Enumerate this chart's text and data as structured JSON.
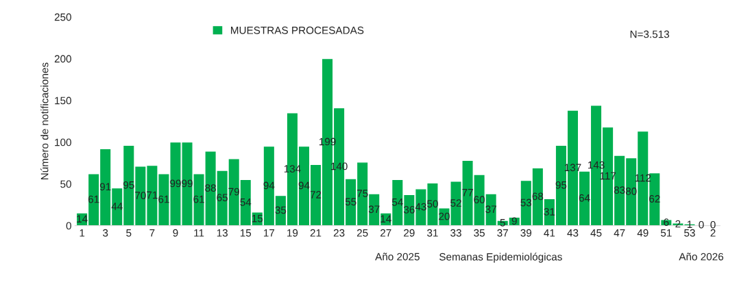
{
  "chart_data": {
    "type": "bar",
    "categories": [
      "1",
      null,
      "3",
      null,
      "5",
      null,
      "7",
      null,
      "9",
      null,
      "11",
      null,
      "13",
      null,
      "15",
      null,
      "17",
      null,
      "19",
      null,
      "21",
      null,
      "23",
      null,
      "25",
      null,
      "27",
      null,
      "29",
      null,
      "31",
      null,
      "33",
      null,
      "35",
      null,
      "37",
      null,
      "39",
      null,
      "41",
      null,
      "43",
      null,
      "45",
      null,
      "47",
      null,
      "49",
      null,
      "51",
      null,
      "53",
      null,
      "2"
    ],
    "series": [
      {
        "name": "MUESTRAS PROCESADAS",
        "color": "#00b050",
        "values": [
          14,
          61,
          91,
          44,
          95,
          70,
          71,
          61,
          99,
          99,
          61,
          88,
          65,
          79,
          54,
          15,
          94,
          35,
          134,
          94,
          72,
          199,
          140,
          55,
          75,
          37,
          14,
          54,
          36,
          43,
          50,
          20,
          52,
          77,
          60,
          37,
          5,
          9,
          53,
          68,
          31,
          95,
          137,
          64,
          143,
          117,
          83,
          80,
          112,
          62,
          6,
          2,
          1,
          0,
          0
        ]
      }
    ],
    "ylabel": "Número de notificaciones",
    "xlabel": "Semanas Epidemiológicas",
    "annotations": [
      "N=3.513",
      "Año 2025",
      "Año 2026"
    ],
    "ylim": [
      0,
      250
    ],
    "yticks": [
      0,
      50,
      100,
      150,
      200,
      250
    ],
    "grid": false,
    "legend": "top left",
    "data_labels": true
  }
}
